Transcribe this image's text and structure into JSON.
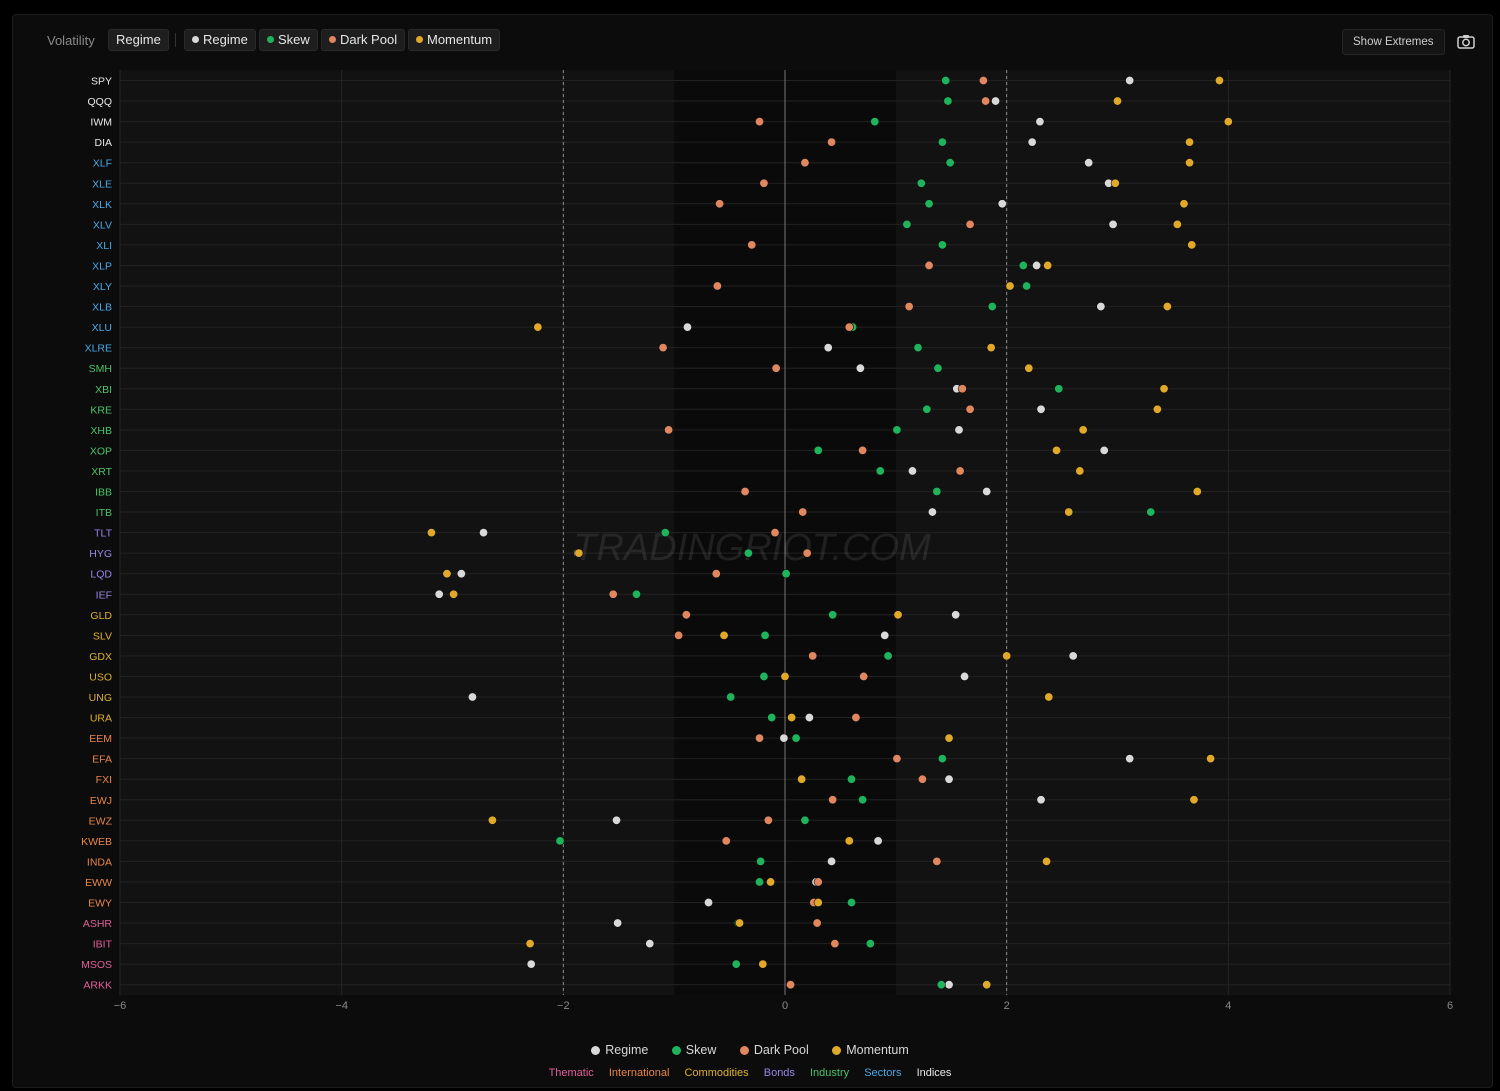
{
  "toolbar": {
    "label": "Volatility",
    "active_tab": "Regime",
    "series_chips": [
      {
        "label": "Regime",
        "color": "#d9d9d9"
      },
      {
        "label": "Skew",
        "color": "#1fb35b"
      },
      {
        "label": "Dark Pool",
        "color": "#e0875f"
      },
      {
        "label": "Momentum",
        "color": "#e0a92a"
      }
    ],
    "show_extremes_label": "Show Extremes",
    "camera_icon": "camera-icon"
  },
  "watermark": "TRADINGRIOT.COM",
  "legend": {
    "series": [
      {
        "label": "Regime",
        "color": "#d9d9d9"
      },
      {
        "label": "Skew",
        "color": "#1fb35b"
      },
      {
        "label": "Dark Pool",
        "color": "#e0875f"
      },
      {
        "label": "Momentum",
        "color": "#e0a92a"
      }
    ],
    "groups": [
      {
        "label": "Thematic",
        "color": "#e0609a"
      },
      {
        "label": "International",
        "color": "#e8864a"
      },
      {
        "label": "Commodities",
        "color": "#e0b030"
      },
      {
        "label": "Bonds",
        "color": "#9a85e8"
      },
      {
        "label": "Industry",
        "color": "#4cc46a"
      },
      {
        "label": "Sectors",
        "color": "#4aa8e8"
      },
      {
        "label": "Indices",
        "color": "#e8e8e8"
      }
    ]
  },
  "chart_data": {
    "type": "scatter",
    "orientation": "horizontal-dot-plot",
    "title": "",
    "xlabel": "",
    "ylabel": "",
    "xlim": [
      -6,
      6
    ],
    "x_ticks": [
      -6,
      -4,
      -2,
      0,
      2,
      4,
      6
    ],
    "reference_lines": [
      -2,
      0,
      2
    ],
    "grid": true,
    "legend_position": "bottom-center",
    "series_names": [
      "Regime",
      "Skew",
      "Dark Pool",
      "Momentum"
    ],
    "series_colors": [
      "#d9d9d9",
      "#1fb35b",
      "#e0875f",
      "#e0a92a"
    ],
    "group_colors": {
      "Indices": "#e8e8e8",
      "Sectors": "#4aa8e8",
      "Industry": "#4cc46a",
      "Bonds": "#9a85e8",
      "Commodities": "#e0b030",
      "International": "#e8864a",
      "Thematic": "#e0609a"
    },
    "rows": [
      {
        "ticker": "SPY",
        "group": "Indices",
        "values": [
          3.11,
          1.45,
          1.79,
          3.92
        ]
      },
      {
        "ticker": "QQQ",
        "group": "Indices",
        "values": [
          1.9,
          1.47,
          1.81,
          3.0
        ]
      },
      {
        "ticker": "IWM",
        "group": "Indices",
        "values": [
          2.3,
          0.81,
          -0.23,
          4.0
        ]
      },
      {
        "ticker": "DIA",
        "group": "Indices",
        "values": [
          2.23,
          1.42,
          0.42,
          3.65
        ]
      },
      {
        "ticker": "XLF",
        "group": "Sectors",
        "values": [
          2.74,
          1.49,
          0.18,
          3.65
        ]
      },
      {
        "ticker": "XLE",
        "group": "Sectors",
        "values": [
          2.92,
          1.23,
          -0.19,
          2.98
        ]
      },
      {
        "ticker": "XLK",
        "group": "Sectors",
        "values": [
          1.96,
          1.3,
          -0.59,
          3.6
        ]
      },
      {
        "ticker": "XLV",
        "group": "Sectors",
        "values": [
          2.96,
          1.1,
          1.67,
          3.54
        ]
      },
      {
        "ticker": "XLI",
        "group": "Sectors",
        "values": [
          1.42,
          1.42,
          -0.3,
          3.67
        ]
      },
      {
        "ticker": "XLP",
        "group": "Sectors",
        "values": [
          2.27,
          2.15,
          1.3,
          2.37
        ]
      },
      {
        "ticker": "XLY",
        "group": "Sectors",
        "values": [
          2.18,
          2.18,
          -0.61,
          2.03
        ]
      },
      {
        "ticker": "XLB",
        "group": "Sectors",
        "values": [
          2.85,
          1.87,
          1.12,
          3.45
        ]
      },
      {
        "ticker": "XLU",
        "group": "Sectors",
        "values": [
          -0.88,
          0.61,
          0.58,
          -2.23
        ]
      },
      {
        "ticker": "XLRE",
        "group": "Sectors",
        "values": [
          0.39,
          1.2,
          -1.1,
          1.86
        ]
      },
      {
        "ticker": "SMH",
        "group": "Industry",
        "values": [
          0.68,
          1.38,
          -0.08,
          2.2
        ]
      },
      {
        "ticker": "XBI",
        "group": "Industry",
        "values": [
          1.55,
          2.47,
          1.6,
          3.42
        ]
      },
      {
        "ticker": "KRE",
        "group": "Industry",
        "values": [
          2.31,
          1.28,
          1.67,
          3.36
        ]
      },
      {
        "ticker": "XHB",
        "group": "Industry",
        "values": [
          1.57,
          1.01,
          -1.05,
          2.69
        ]
      },
      {
        "ticker": "XOP",
        "group": "Industry",
        "values": [
          2.88,
          0.3,
          0.7,
          2.45
        ]
      },
      {
        "ticker": "XRT",
        "group": "Industry",
        "values": [
          1.15,
          0.86,
          1.58,
          2.66
        ]
      },
      {
        "ticker": "IBB",
        "group": "Industry",
        "values": [
          1.82,
          1.37,
          -0.36,
          3.72
        ]
      },
      {
        "ticker": "ITB",
        "group": "Industry",
        "values": [
          1.33,
          3.3,
          0.16,
          2.56
        ]
      },
      {
        "ticker": "TLT",
        "group": "Bonds",
        "values": [
          -2.72,
          -1.08,
          -0.09,
          -3.19
        ]
      },
      {
        "ticker": "HYG",
        "group": "Bonds",
        "values": [
          -1.87,
          -0.33,
          0.2,
          -1.86
        ]
      },
      {
        "ticker": "LQD",
        "group": "Bonds",
        "values": [
          -2.92,
          0.01,
          -0.62,
          -3.05
        ]
      },
      {
        "ticker": "IEF",
        "group": "Bonds",
        "values": [
          -3.12,
          -1.34,
          -1.55,
          -2.99
        ]
      },
      {
        "ticker": "GLD",
        "group": "Commodities",
        "values": [
          1.54,
          0.43,
          -0.89,
          1.02
        ]
      },
      {
        "ticker": "SLV",
        "group": "Commodities",
        "values": [
          0.9,
          -0.18,
          -0.96,
          -0.55
        ]
      },
      {
        "ticker": "GDX",
        "group": "Commodities",
        "values": [
          2.6,
          0.93,
          0.25,
          2.0
        ]
      },
      {
        "ticker": "USO",
        "group": "Commodities",
        "values": [
          1.62,
          -0.19,
          0.71,
          0.0
        ]
      },
      {
        "ticker": "UNG",
        "group": "Commodities",
        "values": [
          -2.82,
          -0.49,
          2.38,
          2.38
        ]
      },
      {
        "ticker": "URA",
        "group": "Commodities",
        "values": [
          0.22,
          -0.12,
          0.64,
          0.06
        ]
      },
      {
        "ticker": "EEM",
        "group": "International",
        "values": [
          -0.01,
          0.1,
          -0.23,
          1.48
        ]
      },
      {
        "ticker": "EFA",
        "group": "International",
        "values": [
          3.11,
          1.42,
          1.01,
          3.84
        ]
      },
      {
        "ticker": "FXI",
        "group": "International",
        "values": [
          1.48,
          0.6,
          1.24,
          0.15
        ]
      },
      {
        "ticker": "EWJ",
        "group": "International",
        "values": [
          2.31,
          0.7,
          0.43,
          3.69
        ]
      },
      {
        "ticker": "EWZ",
        "group": "International",
        "values": [
          -1.52,
          0.18,
          -0.15,
          -2.64
        ]
      },
      {
        "ticker": "KWEB",
        "group": "International",
        "values": [
          0.84,
          -2.03,
          -0.53,
          0.58
        ]
      },
      {
        "ticker": "INDA",
        "group": "International",
        "values": [
          0.42,
          -0.22,
          1.37,
          2.36
        ]
      },
      {
        "ticker": "EWW",
        "group": "International",
        "values": [
          0.28,
          -0.23,
          0.3,
          -0.13
        ]
      },
      {
        "ticker": "EWY",
        "group": "International",
        "values": [
          -0.69,
          0.6,
          0.26,
          0.3
        ]
      },
      {
        "ticker": "ASHR",
        "group": "Thematic",
        "values": [
          -1.51,
          -0.42,
          0.29,
          -0.41
        ]
      },
      {
        "ticker": "IBIT",
        "group": "Thematic",
        "values": [
          -1.22,
          0.77,
          0.45,
          -2.3
        ]
      },
      {
        "ticker": "MSOS",
        "group": "Thematic",
        "values": [
          -2.29,
          -0.44,
          -0.2,
          -0.2
        ]
      },
      {
        "ticker": "ARKK",
        "group": "Thematic",
        "values": [
          1.48,
          1.41,
          0.05,
          1.82
        ]
      }
    ]
  }
}
